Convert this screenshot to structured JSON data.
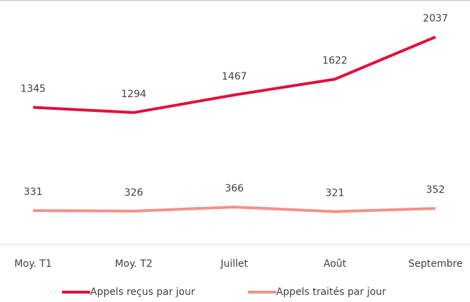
{
  "chart_data": {
    "type": "line",
    "categories": [
      "Moy. T1",
      "Moy. T2",
      "Juillet",
      "Août",
      "Septembre"
    ],
    "series": [
      {
        "name": "Appels reçus par jour",
        "color": "#e0103a",
        "values": [
          1345,
          1294,
          1467,
          1622,
          2037
        ]
      },
      {
        "name": "Appels traités par jour",
        "color": "#f4908a",
        "values": [
          331,
          326,
          366,
          321,
          352
        ]
      }
    ],
    "ylim": [
      0,
      2400
    ],
    "legend": "bottom"
  }
}
